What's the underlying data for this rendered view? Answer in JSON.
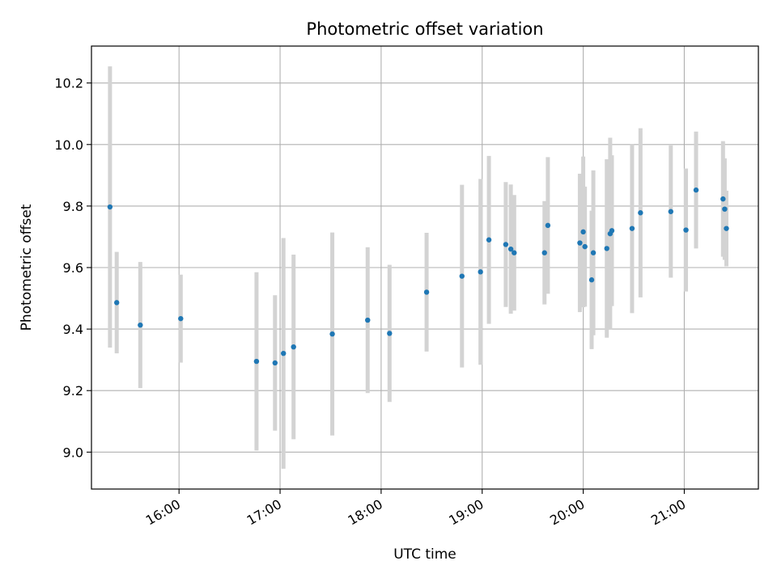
{
  "chart_data": {
    "type": "scatter",
    "title": "Photometric offset variation",
    "xlabel": "UTC time",
    "ylabel": "Photometric offset",
    "xlim": [
      "15:08",
      "21:44"
    ],
    "ylim": [
      8.88,
      10.32
    ],
    "xticks": [
      "16:00",
      "17:00",
      "18:00",
      "19:00",
      "20:00",
      "21:00"
    ],
    "yticks": [
      9.0,
      9.2,
      9.4,
      9.6,
      9.8,
      10.0,
      10.2
    ],
    "grid": true,
    "colors": {
      "points": "#1f77b4",
      "errorbars": "#d3d3d3",
      "grid": "#b0b0b0"
    },
    "points": [
      {
        "x": "15:19",
        "y": 9.797,
        "yerr": 0.457
      },
      {
        "x": "15:23",
        "y": 9.486,
        "yerr": 0.165
      },
      {
        "x": "15:37",
        "y": 9.413,
        "yerr": 0.205
      },
      {
        "x": "16:01",
        "y": 9.434,
        "yerr": 0.143
      },
      {
        "x": "16:46",
        "y": 9.295,
        "yerr": 0.29
      },
      {
        "x": "16:57",
        "y": 9.29,
        "yerr": 0.22
      },
      {
        "x": "17:02",
        "y": 9.321,
        "yerr": 0.375
      },
      {
        "x": "17:08",
        "y": 9.342,
        "yerr": 0.3
      },
      {
        "x": "17:31",
        "y": 9.384,
        "yerr": 0.33
      },
      {
        "x": "17:52",
        "y": 9.429,
        "yerr": 0.237
      },
      {
        "x": "18:05",
        "y": 9.386,
        "yerr": 0.223
      },
      {
        "x": "18:27",
        "y": 9.52,
        "yerr": 0.193
      },
      {
        "x": "18:48",
        "y": 9.572,
        "yerr": 0.297
      },
      {
        "x": "18:59",
        "y": 9.586,
        "yerr": 0.302
      },
      {
        "x": "19:04",
        "y": 9.69,
        "yerr": 0.273
      },
      {
        "x": "19:14",
        "y": 9.675,
        "yerr": 0.203
      },
      {
        "x": "19:17",
        "y": 9.66,
        "yerr": 0.21
      },
      {
        "x": "19:19",
        "y": 9.648,
        "yerr": 0.188
      },
      {
        "x": "19:37",
        "y": 9.648,
        "yerr": 0.168
      },
      {
        "x": "19:39",
        "y": 9.737,
        "yerr": 0.222
      },
      {
        "x": "19:58",
        "y": 9.68,
        "yerr": 0.225
      },
      {
        "x": "20:00",
        "y": 9.716,
        "yerr": 0.245
      },
      {
        "x": "20:01",
        "y": 9.668,
        "yerr": 0.195
      },
      {
        "x": "20:05",
        "y": 9.56,
        "yerr": 0.225
      },
      {
        "x": "20:06",
        "y": 9.648,
        "yerr": 0.268
      },
      {
        "x": "20:14",
        "y": 9.662,
        "yerr": 0.29
      },
      {
        "x": "20:16",
        "y": 9.71,
        "yerr": 0.312
      },
      {
        "x": "20:17",
        "y": 9.72,
        "yerr": 0.245
      },
      {
        "x": "20:29",
        "y": 9.727,
        "yerr": 0.275
      },
      {
        "x": "20:34",
        "y": 9.778,
        "yerr": 0.275
      },
      {
        "x": "20:52",
        "y": 9.782,
        "yerr": 0.215
      },
      {
        "x": "21:01",
        "y": 9.722,
        "yerr": 0.2
      },
      {
        "x": "21:07",
        "y": 9.852,
        "yerr": 0.19
      },
      {
        "x": "21:23",
        "y": 9.823,
        "yerr": 0.188
      },
      {
        "x": "21:24",
        "y": 9.79,
        "yerr": 0.165
      },
      {
        "x": "21:25",
        "y": 9.727,
        "yerr": 0.123
      }
    ]
  }
}
